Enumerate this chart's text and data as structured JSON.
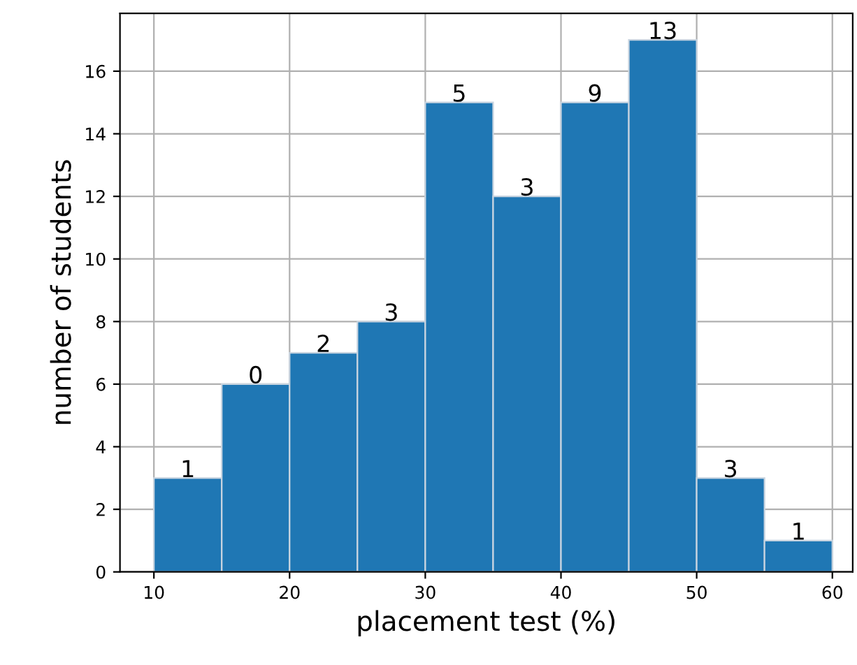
{
  "chart_data": {
    "type": "histogram",
    "xlabel": "placement test (%)",
    "ylabel": "number of students",
    "bins": [
      10,
      15,
      20,
      25,
      30,
      35,
      40,
      45,
      50,
      55,
      60
    ],
    "values": [
      3,
      6,
      7,
      8,
      15,
      12,
      15,
      17,
      3,
      1
    ],
    "annotations": [
      {
        "text": "1",
        "x": 12.5,
        "y": 3
      },
      {
        "text": "0",
        "x": 17.5,
        "y": 6
      },
      {
        "text": "2",
        "x": 22.5,
        "y": 7
      },
      {
        "text": "3",
        "x": 27.5,
        "y": 8
      },
      {
        "text": "5",
        "x": 32.5,
        "y": 15
      },
      {
        "text": "3",
        "x": 37.5,
        "y": 12
      },
      {
        "text": "9",
        "x": 42.5,
        "y": 15
      },
      {
        "text": "13",
        "x": 47.5,
        "y": 17
      },
      {
        "text": "3",
        "x": 52.5,
        "y": 3
      },
      {
        "text": "1",
        "x": 57.5,
        "y": 1
      }
    ],
    "color": "#1f77b4",
    "xlim": [
      7.5,
      61.5
    ],
    "ylim": [
      0,
      17.85
    ],
    "xticks": [
      10,
      20,
      30,
      40,
      50,
      60
    ],
    "yticks": [
      0,
      2,
      4,
      6,
      8,
      10,
      12,
      14,
      16
    ],
    "grid": true
  }
}
